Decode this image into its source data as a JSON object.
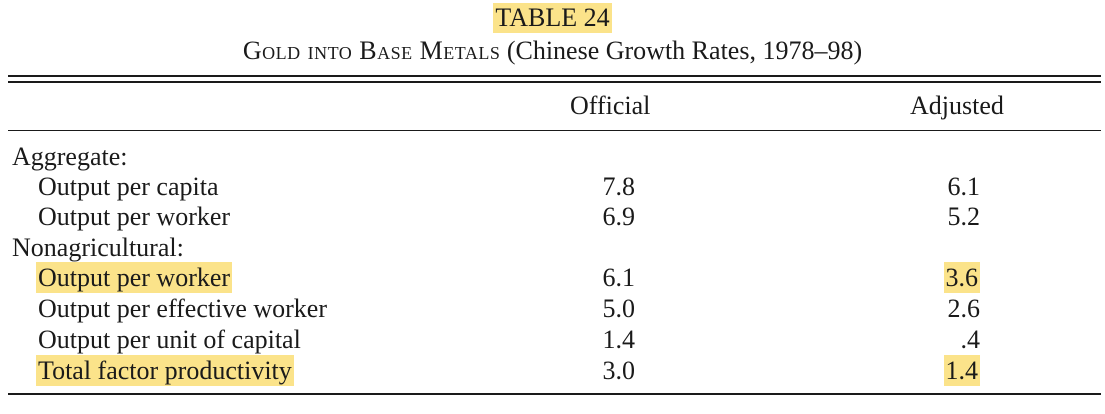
{
  "table": {
    "number_label": "TABLE 24",
    "title_smallcaps": "Gold into Base Metals",
    "title_rest": " (Chinese Growth Rates, 1978–98)",
    "columns": {
      "official": "Official",
      "adjusted": "Adjusted"
    },
    "rows": [
      {
        "type": "group",
        "label": "Aggregate:",
        "official": "",
        "adjusted": ""
      },
      {
        "type": "item",
        "label": "Output per capita",
        "official": "7.8",
        "adjusted": "6.1"
      },
      {
        "type": "item",
        "label": "Output per worker",
        "official": "6.9",
        "adjusted": "5.2"
      },
      {
        "type": "group",
        "label": "Nonagricultural:",
        "official": "",
        "adjusted": ""
      },
      {
        "type": "item",
        "label": "Output per worker",
        "official": "6.1",
        "adjusted": "3.6"
      },
      {
        "type": "item",
        "label": "Output per effective worker",
        "official": "5.0",
        "adjusted": "2.6"
      },
      {
        "type": "item",
        "label": "Output per unit of capital",
        "official": "1.4",
        "adjusted": ".4"
      },
      {
        "type": "item",
        "label": "Total factor productivity",
        "official": "3.0",
        "adjusted": "1.4"
      }
    ]
  },
  "highlights": {
    "color": "#fbe38a",
    "table_label": true,
    "cells": [
      {
        "row": 4,
        "cells": [
          "label",
          "adjusted"
        ]
      },
      {
        "row": 7,
        "cells": [
          "label",
          "adjusted"
        ]
      }
    ]
  }
}
